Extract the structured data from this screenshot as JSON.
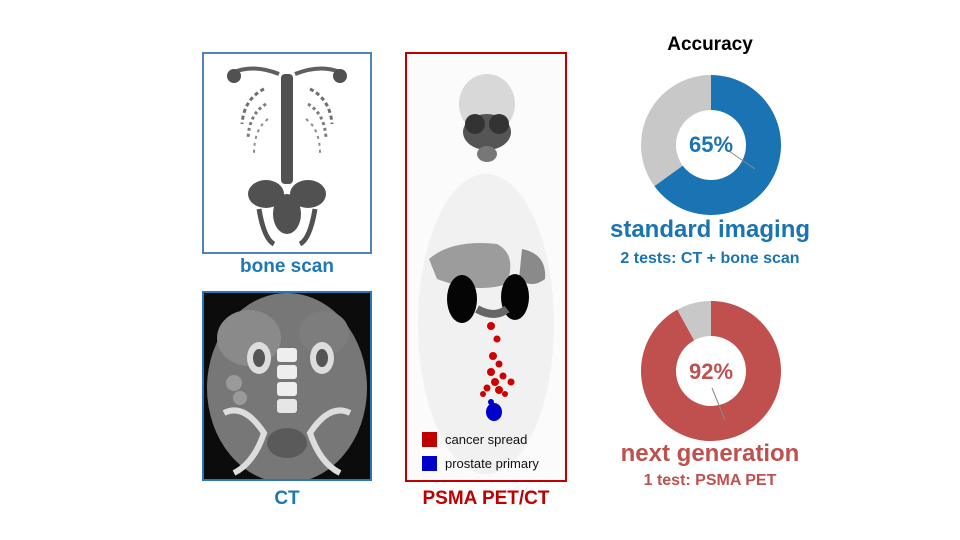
{
  "panels": {
    "bone_scan": {
      "caption": "bone scan"
    },
    "ct": {
      "caption": "CT"
    },
    "psma": {
      "caption": "PSMA PET/CT"
    }
  },
  "legend": [
    {
      "label": "cancer spread",
      "color": "#c00000"
    },
    {
      "label": "prostate primary",
      "color": "#0000cc"
    }
  ],
  "accuracy": {
    "heading": "Accuracy",
    "standard": {
      "value_label": "65%",
      "title": "standard imaging",
      "subtitle": "2 tests: CT + bone scan",
      "color": "#1a74b3"
    },
    "next": {
      "value_label": "92%",
      "title": "next generation",
      "subtitle": "1 test: PSMA PET",
      "color": "#c0504d"
    },
    "remainder_color": "#c8c8c8"
  },
  "chart_data": [
    {
      "type": "pie",
      "categories": [
        "accurate",
        "inaccurate"
      ],
      "values": [
        65,
        35
      ],
      "title": "standard imaging"
    },
    {
      "type": "pie",
      "categories": [
        "accurate",
        "inaccurate"
      ],
      "values": [
        92,
        8
      ],
      "title": "next generation"
    }
  ],
  "colors": {
    "bone_frame": "#4f81bd",
    "ct_frame": "#2e75b6",
    "psma_frame": "#c00000",
    "bone_caption": "#1f77b4",
    "psma_caption": "#c00000"
  }
}
